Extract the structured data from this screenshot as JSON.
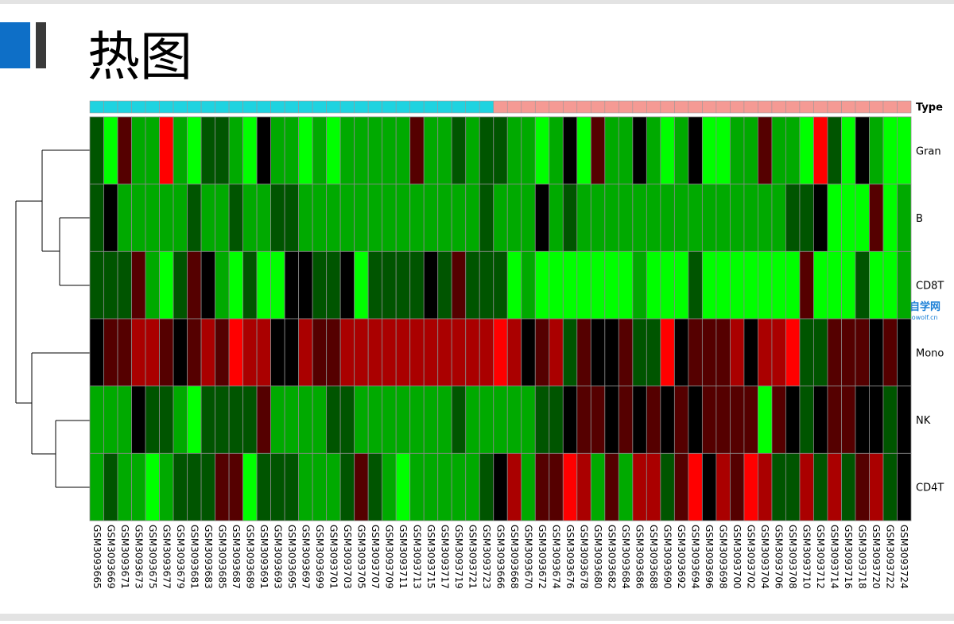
{
  "title": "热图",
  "watermark": {
    "name": "生信自学网",
    "url": "www.biowolf.cn"
  },
  "chart_data": {
    "type": "heatmap",
    "rows": [
      "Gran",
      "B",
      "CD8T",
      "Mono",
      "NK",
      "CD4T"
    ],
    "columns": [
      "GSM3093665",
      "GSM3093669",
      "GSM3093671",
      "GSM3093673",
      "GSM3093675",
      "GSM3093677",
      "GSM3093679",
      "GSM3093681",
      "GSM3093683",
      "GSM3093685",
      "GSM3093687",
      "GSM3093689",
      "GSM3093691",
      "GSM3093693",
      "GSM3093695",
      "GSM3093697",
      "GSM3093699",
      "GSM3093701",
      "GSM3093703",
      "GSM3093705",
      "GSM3093707",
      "GSM3093709",
      "GSM3093711",
      "GSM3093713",
      "GSM3093715",
      "GSM3093717",
      "GSM3093719",
      "GSM3093721",
      "GSM3093723",
      "GSM3093666",
      "GSM3093668",
      "GSM3093670",
      "GSM3093672",
      "GSM3093674",
      "GSM3093676",
      "GSM3093678",
      "GSM3093680",
      "GSM3093682",
      "GSM3093684",
      "GSM3093686",
      "GSM3093688",
      "GSM3093690",
      "GSM3093692",
      "GSM3093694",
      "GSM3093696",
      "GSM3093698",
      "GSM3093700",
      "GSM3093702",
      "GSM3093704",
      "GSM3093706",
      "GSM3093708",
      "GSM3093710",
      "GSM3093712",
      "GSM3093714",
      "GSM3093716",
      "GSM3093718",
      "GSM3093720",
      "GSM3093722",
      "GSM3093724"
    ],
    "values": [
      [
        -1,
        -3,
        1,
        -2,
        -2,
        3,
        -2,
        -3,
        -1,
        -1,
        -2,
        -3,
        0,
        -2,
        -2,
        -3,
        -2,
        -3,
        -2,
        -2,
        -2,
        -2,
        -2,
        1,
        -2,
        -2,
        -1,
        -2,
        -1,
        -1,
        -2,
        -2,
        -3,
        -2,
        0,
        -3,
        1,
        -2,
        -2,
        0,
        -2,
        -3,
        -2,
        0,
        -3,
        -3,
        -2,
        -2,
        1,
        -2,
        -2,
        -3,
        3,
        -1,
        -3,
        0,
        -2,
        -3,
        -3
      ],
      [
        -1,
        0,
        -2,
        -2,
        -2,
        -2,
        -2,
        -1,
        -2,
        -2,
        -1,
        -2,
        -2,
        -1,
        -1,
        -2,
        -2,
        -2,
        -2,
        -2,
        -2,
        -2,
        -2,
        -2,
        -2,
        -2,
        -2,
        -2,
        -1,
        -2,
        -2,
        -2,
        0,
        -2,
        -1,
        -2,
        -2,
        -2,
        -2,
        -2,
        -2,
        -2,
        -2,
        -2,
        -2,
        -2,
        -2,
        -2,
        -2,
        -2,
        -1,
        -1,
        0,
        -3,
        -3,
        -3,
        1,
        -3,
        -2
      ],
      [
        -1,
        -1,
        -1,
        1,
        -2,
        -3,
        -1,
        1,
        0,
        -2,
        -3,
        -1,
        -3,
        -3,
        0,
        0,
        -1,
        -1,
        0,
        -3,
        -1,
        -1,
        -1,
        -1,
        0,
        -1,
        1,
        -1,
        -1,
        -1,
        -3,
        -2,
        -3,
        -3,
        -3,
        -3,
        -3,
        -3,
        -3,
        -2,
        -3,
        -3,
        -3,
        -1,
        -3,
        -3,
        -3,
        -3,
        -3,
        -3,
        -3,
        1,
        -3,
        -3,
        -3,
        -1,
        -3,
        -3,
        -2
      ],
      [
        0,
        1,
        1,
        2,
        2,
        1,
        0,
        1,
        2,
        1,
        3,
        2,
        2,
        0,
        0,
        2,
        1,
        1,
        2,
        2,
        2,
        2,
        2,
        2,
        2,
        2,
        2,
        2,
        2,
        3,
        2,
        0,
        1,
        2,
        -1,
        1,
        0,
        0,
        1,
        -1,
        -1,
        3,
        0,
        1,
        1,
        1,
        2,
        0,
        2,
        2,
        3,
        -1,
        -1,
        1,
        1,
        1,
        0,
        1,
        0
      ],
      [
        -2,
        -2,
        -2,
        0,
        -1,
        -1,
        -2,
        -3,
        -1,
        -1,
        -1,
        -1,
        1,
        -2,
        -2,
        -2,
        -2,
        -1,
        -1,
        -2,
        -2,
        -2,
        -2,
        -2,
        -2,
        -2,
        -1,
        -2,
        -2,
        -2,
        -2,
        -2,
        -1,
        -1,
        0,
        1,
        1,
        0,
        1,
        0,
        1,
        0,
        1,
        0,
        1,
        1,
        1,
        1,
        -3,
        1,
        0,
        -1,
        0,
        1,
        1,
        0,
        0,
        -1,
        0
      ],
      [
        -2,
        -1,
        -2,
        -2,
        -3,
        -2,
        -1,
        -1,
        -1,
        1,
        1,
        -3,
        -1,
        -1,
        -1,
        -2,
        -2,
        -2,
        -1,
        1,
        -1,
        -2,
        -3,
        -2,
        -2,
        -2,
        -2,
        -2,
        -1,
        0,
        2,
        -2,
        1,
        1,
        3,
        2,
        -2,
        1,
        -2,
        2,
        2,
        -1,
        1,
        3,
        0,
        2,
        1,
        3,
        2,
        -1,
        -1,
        2,
        -1,
        2,
        -1,
        1,
        2,
        -1,
        0
      ]
    ],
    "zlim": [
      -3,
      3
    ],
    "color_scale": {
      "low": "#00ff00",
      "mid": "#000000",
      "high": "#ff0000"
    },
    "annotation": {
      "label": "Type",
      "colors": [
        "#1fd3e0",
        "#f59a94"
      ],
      "groups": [
        0,
        0,
        0,
        0,
        0,
        0,
        0,
        0,
        0,
        0,
        0,
        0,
        0,
        0,
        0,
        0,
        0,
        0,
        0,
        0,
        0,
        0,
        0,
        0,
        0,
        0,
        0,
        0,
        0,
        1,
        1,
        1,
        1,
        1,
        1,
        1,
        1,
        1,
        1,
        1,
        1,
        1,
        1,
        1,
        1,
        1,
        1,
        1,
        1,
        1,
        1,
        1,
        1,
        1,
        1,
        1,
        1,
        1,
        1
      ]
    }
  }
}
